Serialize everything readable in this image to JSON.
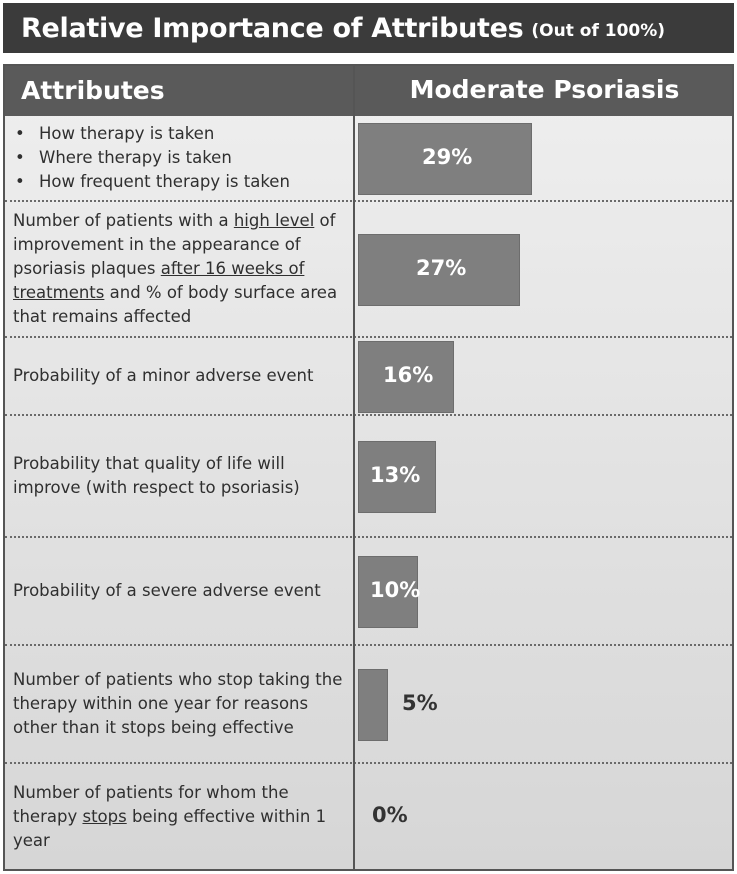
{
  "title": "Relative Importance of Attributes",
  "subtitle": "(Out of 100%)",
  "header": {
    "col1": "Attributes",
    "col2": "Moderate Psoriasis"
  },
  "chart_data": {
    "type": "bar",
    "orientation": "horizontal",
    "title": "Relative Importance of Attributes (Out of 100%)",
    "series_name": "Moderate Psoriasis",
    "unit": "%",
    "xlim": [
      0,
      100
    ],
    "values": [
      29,
      27,
      16,
      13,
      10,
      5,
      0
    ],
    "labels": [
      "29%",
      "27%",
      "16%",
      "13%",
      "10%",
      "5%",
      "0%"
    ],
    "categories": [
      {
        "bullets": [
          "How therapy is taken",
          "Where therapy is taken",
          "How frequent therapy is taken"
        ]
      },
      {
        "parts": [
          {
            "t": "Number of patients with a "
          },
          {
            "t": "high level",
            "u": true
          },
          {
            "t": " of improvement in the appearance of psoriasis plaques "
          },
          {
            "t": "after 16 weeks of treatments",
            "u": true
          },
          {
            "t": " and % of body surface area that remains affected"
          }
        ]
      },
      {
        "parts": [
          {
            "t": "Probability of a minor adverse event"
          }
        ]
      },
      {
        "parts": [
          {
            "t": "Probability that quality of life will improve (with respect to psoriasis)"
          }
        ]
      },
      {
        "parts": [
          {
            "t": "Probability of a severe adverse event"
          }
        ]
      },
      {
        "parts": [
          {
            "t": "Number of patients who stop taking the therapy within one year for reasons other than it stops being effective"
          }
        ]
      },
      {
        "parts": [
          {
            "t": "Number of patients for whom the therapy "
          },
          {
            "t": "stops",
            "u": true
          },
          {
            "t": " being effective within 1 year"
          }
        ]
      }
    ]
  }
}
